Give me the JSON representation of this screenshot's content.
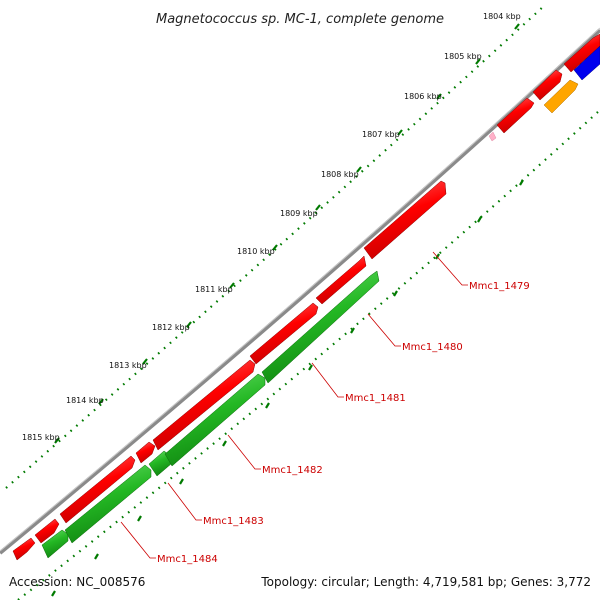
{
  "title": "Magnetococcus sp. MC-1, complete genome",
  "footer": {
    "accession": "Accession: NC_008576",
    "topology": "Topology: circular; Length: 4,719,581 bp; Genes: 3,772"
  },
  "scale_labels": [
    "1804 kbp",
    "1805 kbp",
    "1806 kbp",
    "1807 kbp",
    "1808 kbp",
    "1809 kbp",
    "1810 kbp",
    "1811 kbp",
    "1812 kbp",
    "1813 kbp",
    "1814 kbp",
    "1815 kbp"
  ],
  "gene_labels": [
    "Mmc1_1479",
    "Mmc1_1480",
    "Mmc1_1481",
    "Mmc1_1482",
    "Mmc1_1483",
    "Mmc1_1484"
  ],
  "colors": {
    "backbone": "#8a8a8a",
    "forward_gene": "#ff0000",
    "reverse_gene": "#22c222",
    "other_gene_blue": "#0000ee",
    "other_gene_orange": "#ffa500",
    "tick": "#007a00",
    "label": "#cc0000"
  }
}
